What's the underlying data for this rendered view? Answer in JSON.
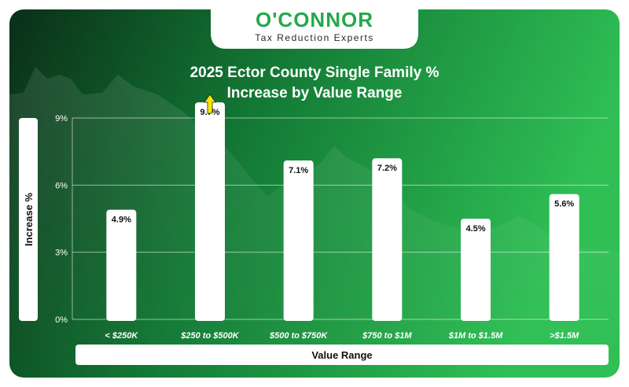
{
  "brand": {
    "name": "O'CONNOR",
    "tagline": "Tax Reduction Experts",
    "accent": "#22a94a",
    "dark": "#0d3b1e"
  },
  "chart_data": {
    "type": "bar",
    "title_line1": "2025 Ector County Single Family %",
    "title_line2": "Increase by Value Range",
    "xlabel": "Value Range",
    "ylabel": "Increase %",
    "ylim": [
      0,
      9
    ],
    "yticks": [
      0,
      3,
      6,
      9
    ],
    "ytick_labels": [
      "0%",
      "3%",
      "6%",
      "9%"
    ],
    "grid": true,
    "categories": [
      "< $250K",
      "$250 to $500K",
      "$500 to $750K",
      "$750 to $1M",
      "$1M to $1.5M",
      ">$1.5M"
    ],
    "values": [
      4.9,
      9.7,
      7.1,
      7.2,
      4.5,
      5.6
    ],
    "value_labels": [
      "4.9%",
      "9.7%",
      "7.1%",
      "7.2%",
      "4.5%",
      "5.6%"
    ],
    "bar_color": "#ffffff",
    "highlight_arrow_on": "$250 to $500K",
    "arrow_color": "#ffe600"
  }
}
